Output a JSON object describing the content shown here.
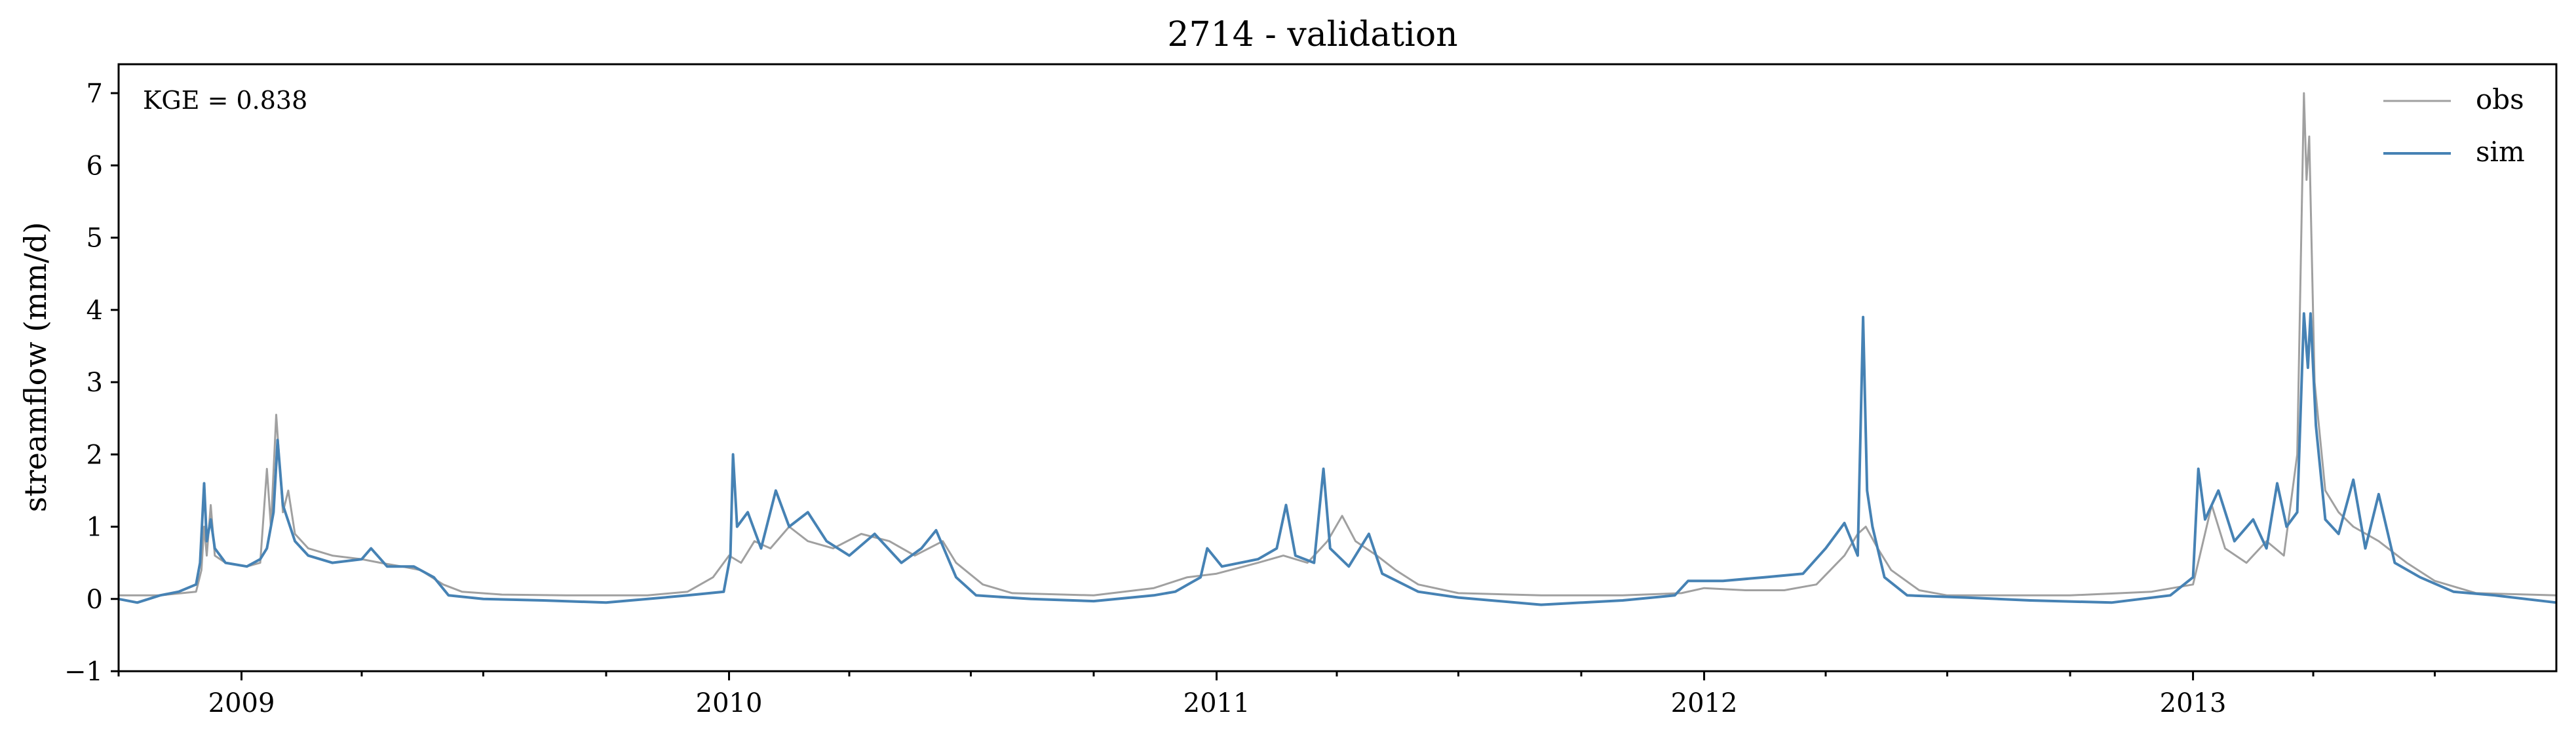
{
  "chart_data": {
    "type": "line",
    "title": "2714 - validation",
    "xlabel": "",
    "ylabel": "streamflow (mm/d)",
    "x_range": [
      "2008-10-01",
      "2013-09-30"
    ],
    "ylim": [
      -1,
      7.4
    ],
    "yticks": [
      -1,
      0,
      1,
      2,
      3,
      4,
      5,
      6,
      7
    ],
    "ytick_labels": [
      "−1",
      "0",
      "1",
      "2",
      "3",
      "4",
      "5",
      "6",
      "7"
    ],
    "xtick_labels": [
      {
        "date": "2009-01-01",
        "label": "2009"
      },
      {
        "date": "2010-01-01",
        "label": "2010"
      },
      {
        "date": "2011-01-01",
        "label": "2011"
      },
      {
        "date": "2012-01-01",
        "label": "2012"
      },
      {
        "date": "2013-01-01",
        "label": "2013"
      }
    ],
    "grid": false,
    "legend_position": "top-right",
    "annotation": "KGE = 0.838",
    "series": [
      {
        "name": "obs",
        "color": "#a0a0a0",
        "points": [
          [
            "2008-10-01",
            0.05
          ],
          [
            "2008-11-01",
            0.05
          ],
          [
            "2008-11-28",
            0.1
          ],
          [
            "2008-12-02",
            0.4
          ],
          [
            "2008-12-04",
            1.0
          ],
          [
            "2008-12-06",
            0.6
          ],
          [
            "2008-12-09",
            1.3
          ],
          [
            "2008-12-12",
            0.6
          ],
          [
            "2008-12-20",
            0.5
          ],
          [
            "2009-01-05",
            0.45
          ],
          [
            "2009-01-15",
            0.5
          ],
          [
            "2009-01-20",
            1.8
          ],
          [
            "2009-01-23",
            1.0
          ],
          [
            "2009-01-27",
            2.55
          ],
          [
            "2009-02-01",
            1.2
          ],
          [
            "2009-02-05",
            1.5
          ],
          [
            "2009-02-10",
            0.9
          ],
          [
            "2009-02-20",
            0.7
          ],
          [
            "2009-03-10",
            0.6
          ],
          [
            "2009-04-01",
            0.55
          ],
          [
            "2009-04-15",
            0.5
          ],
          [
            "2009-05-01",
            0.45
          ],
          [
            "2009-05-15",
            0.4
          ],
          [
            "2009-06-01",
            0.2
          ],
          [
            "2009-06-15",
            0.1
          ],
          [
            "2009-07-15",
            0.06
          ],
          [
            "2009-09-01",
            0.05
          ],
          [
            "2009-11-01",
            0.05
          ],
          [
            "2009-12-01",
            0.1
          ],
          [
            "2009-12-20",
            0.3
          ],
          [
            "2010-01-01",
            0.6
          ],
          [
            "2010-01-10",
            0.5
          ],
          [
            "2010-01-20",
            0.8
          ],
          [
            "2010-02-01",
            0.7
          ],
          [
            "2010-02-15",
            1.0
          ],
          [
            "2010-03-01",
            0.8
          ],
          [
            "2010-03-20",
            0.7
          ],
          [
            "2010-04-10",
            0.9
          ],
          [
            "2010-05-01",
            0.8
          ],
          [
            "2010-05-20",
            0.6
          ],
          [
            "2010-06-10",
            0.8
          ],
          [
            "2010-06-20",
            0.5
          ],
          [
            "2010-07-10",
            0.2
          ],
          [
            "2010-08-01",
            0.08
          ],
          [
            "2010-10-01",
            0.05
          ],
          [
            "2010-11-15",
            0.15
          ],
          [
            "2010-12-10",
            0.3
          ],
          [
            "2011-01-01",
            0.35
          ],
          [
            "2011-02-01",
            0.5
          ],
          [
            "2011-02-20",
            0.6
          ],
          [
            "2011-03-10",
            0.5
          ],
          [
            "2011-03-25",
            0.8
          ],
          [
            "2011-04-05",
            1.15
          ],
          [
            "2011-04-15",
            0.8
          ],
          [
            "2011-05-01",
            0.6
          ],
          [
            "2011-05-15",
            0.4
          ],
          [
            "2011-06-01",
            0.2
          ],
          [
            "2011-07-01",
            0.08
          ],
          [
            "2011-09-01",
            0.05
          ],
          [
            "2011-11-01",
            0.05
          ],
          [
            "2011-12-15",
            0.08
          ],
          [
            "2012-01-01",
            0.15
          ],
          [
            "2012-02-01",
            0.12
          ],
          [
            "2012-03-01",
            0.12
          ],
          [
            "2012-03-25",
            0.2
          ],
          [
            "2012-04-15",
            0.6
          ],
          [
            "2012-04-25",
            0.9
          ],
          [
            "2012-05-01",
            1.0
          ],
          [
            "2012-05-10",
            0.7
          ],
          [
            "2012-05-20",
            0.4
          ],
          [
            "2012-06-10",
            0.12
          ],
          [
            "2012-07-01",
            0.05
          ],
          [
            "2012-10-01",
            0.05
          ],
          [
            "2012-12-01",
            0.1
          ],
          [
            "2013-01-01",
            0.2
          ],
          [
            "2013-01-15",
            1.3
          ],
          [
            "2013-01-25",
            0.7
          ],
          [
            "2013-02-10",
            0.5
          ],
          [
            "2013-02-25",
            0.8
          ],
          [
            "2013-03-10",
            0.6
          ],
          [
            "2013-03-20",
            2.0
          ],
          [
            "2013-03-25",
            7.0
          ],
          [
            "2013-03-27",
            5.8
          ],
          [
            "2013-03-29",
            6.4
          ],
          [
            "2013-04-02",
            3.0
          ],
          [
            "2013-04-10",
            1.5
          ],
          [
            "2013-04-20",
            1.2
          ],
          [
            "2013-05-01",
            1.0
          ],
          [
            "2013-05-20",
            0.8
          ],
          [
            "2013-06-10",
            0.5
          ],
          [
            "2013-07-01",
            0.25
          ],
          [
            "2013-08-01",
            0.08
          ],
          [
            "2013-09-30",
            0.05
          ]
        ]
      },
      {
        "name": "sim",
        "color": "#4682b4",
        "points": [
          [
            "2008-10-01",
            0.0
          ],
          [
            "2008-10-15",
            -0.05
          ],
          [
            "2008-11-01",
            0.05
          ],
          [
            "2008-11-15",
            0.1
          ],
          [
            "2008-11-28",
            0.2
          ],
          [
            "2008-12-01",
            0.5
          ],
          [
            "2008-12-04",
            1.6
          ],
          [
            "2008-12-06",
            0.8
          ],
          [
            "2008-12-09",
            1.1
          ],
          [
            "2008-12-12",
            0.7
          ],
          [
            "2008-12-20",
            0.5
          ],
          [
            "2009-01-05",
            0.45
          ],
          [
            "2009-01-15",
            0.55
          ],
          [
            "2009-01-20",
            0.7
          ],
          [
            "2009-01-25",
            1.2
          ],
          [
            "2009-01-28",
            2.2
          ],
          [
            "2009-02-01",
            1.3
          ],
          [
            "2009-02-10",
            0.8
          ],
          [
            "2009-02-20",
            0.6
          ],
          [
            "2009-03-10",
            0.5
          ],
          [
            "2009-04-01",
            0.55
          ],
          [
            "2009-04-08",
            0.7
          ],
          [
            "2009-04-20",
            0.45
          ],
          [
            "2009-05-10",
            0.45
          ],
          [
            "2009-05-25",
            0.3
          ],
          [
            "2009-06-05",
            0.05
          ],
          [
            "2009-07-01",
            0.0
          ],
          [
            "2009-08-15",
            -0.02
          ],
          [
            "2009-10-01",
            -0.05
          ],
          [
            "2009-11-01",
            0.0
          ],
          [
            "2009-12-01",
            0.05
          ],
          [
            "2009-12-28",
            0.1
          ],
          [
            "2010-01-02",
            0.6
          ],
          [
            "2010-01-04",
            2.0
          ],
          [
            "2010-01-07",
            1.0
          ],
          [
            "2010-01-15",
            1.2
          ],
          [
            "2010-01-25",
            0.7
          ],
          [
            "2010-02-05",
            1.5
          ],
          [
            "2010-02-15",
            1.0
          ],
          [
            "2010-03-01",
            1.2
          ],
          [
            "2010-03-15",
            0.8
          ],
          [
            "2010-04-01",
            0.6
          ],
          [
            "2010-04-20",
            0.9
          ],
          [
            "2010-05-10",
            0.5
          ],
          [
            "2010-05-25",
            0.7
          ],
          [
            "2010-06-05",
            0.95
          ],
          [
            "2010-06-20",
            0.3
          ],
          [
            "2010-07-05",
            0.05
          ],
          [
            "2010-08-15",
            0.0
          ],
          [
            "2010-10-01",
            -0.03
          ],
          [
            "2010-11-15",
            0.05
          ],
          [
            "2010-12-01",
            0.1
          ],
          [
            "2010-12-20",
            0.3
          ],
          [
            "2010-12-25",
            0.7
          ],
          [
            "2011-01-05",
            0.45
          ],
          [
            "2011-02-01",
            0.55
          ],
          [
            "2011-02-15",
            0.7
          ],
          [
            "2011-02-22",
            1.3
          ],
          [
            "2011-03-01",
            0.6
          ],
          [
            "2011-03-15",
            0.5
          ],
          [
            "2011-03-22",
            1.8
          ],
          [
            "2011-03-27",
            0.7
          ],
          [
            "2011-04-10",
            0.45
          ],
          [
            "2011-04-25",
            0.9
          ],
          [
            "2011-05-05",
            0.35
          ],
          [
            "2011-06-01",
            0.1
          ],
          [
            "2011-07-01",
            0.02
          ],
          [
            "2011-09-01",
            -0.08
          ],
          [
            "2011-11-01",
            -0.02
          ],
          [
            "2011-12-10",
            0.05
          ],
          [
            "2011-12-20",
            0.25
          ],
          [
            "2012-01-15",
            0.25
          ],
          [
            "2012-02-15",
            0.3
          ],
          [
            "2012-03-15",
            0.35
          ],
          [
            "2012-04-01",
            0.7
          ],
          [
            "2012-04-15",
            1.05
          ],
          [
            "2012-04-25",
            0.6
          ],
          [
            "2012-04-29",
            3.9
          ],
          [
            "2012-05-02",
            1.5
          ],
          [
            "2012-05-06",
            1.0
          ],
          [
            "2012-05-15",
            0.3
          ],
          [
            "2012-06-01",
            0.05
          ],
          [
            "2012-07-15",
            0.02
          ],
          [
            "2012-09-01",
            -0.02
          ],
          [
            "2012-11-01",
            -0.05
          ],
          [
            "2012-12-15",
            0.05
          ],
          [
            "2013-01-01",
            0.3
          ],
          [
            "2013-01-05",
            1.8
          ],
          [
            "2013-01-10",
            1.1
          ],
          [
            "2013-01-20",
            1.5
          ],
          [
            "2013-02-01",
            0.8
          ],
          [
            "2013-02-15",
            1.1
          ],
          [
            "2013-02-25",
            0.7
          ],
          [
            "2013-03-05",
            1.6
          ],
          [
            "2013-03-12",
            1.0
          ],
          [
            "2013-03-20",
            1.2
          ],
          [
            "2013-03-25",
            3.95
          ],
          [
            "2013-03-28",
            3.2
          ],
          [
            "2013-03-30",
            3.95
          ],
          [
            "2013-04-03",
            2.4
          ],
          [
            "2013-04-10",
            1.1
          ],
          [
            "2013-04-20",
            0.9
          ],
          [
            "2013-05-01",
            1.65
          ],
          [
            "2013-05-10",
            0.7
          ],
          [
            "2013-05-20",
            1.45
          ],
          [
            "2013-06-01",
            0.5
          ],
          [
            "2013-06-20",
            0.3
          ],
          [
            "2013-07-15",
            0.1
          ],
          [
            "2013-08-15",
            0.05
          ],
          [
            "2013-09-30",
            -0.05
          ]
        ]
      }
    ]
  }
}
